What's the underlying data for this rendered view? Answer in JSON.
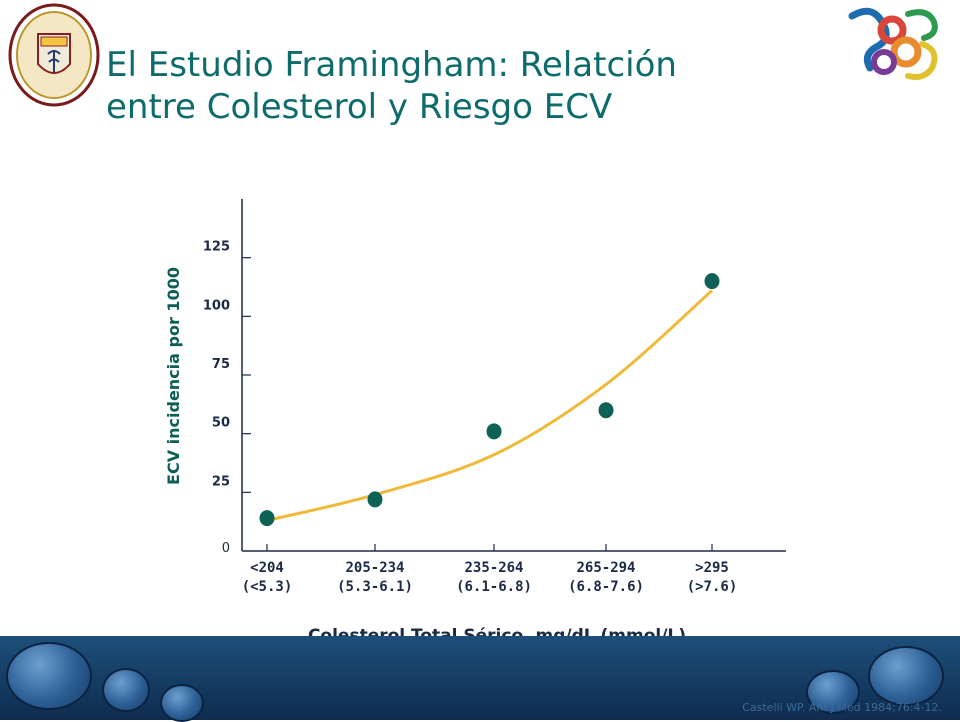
{
  "slide": {
    "title_line1": "El Estudio Framingham: Relatción",
    "title_line2": "entre Colesterol y Riesgo ECV",
    "citation": "Castelli WP. Am J Med 1984;76:4-12.",
    "title_color": "#0d6b6b"
  },
  "logos": {
    "left": "university-seal",
    "right": "abstract-colorful-logo"
  },
  "chart_data": {
    "type": "scatter",
    "xlabel": "Colesterol Total Sérico, mg/dL (mmol/L)",
    "ylabel": "ECV incidencia por 1000",
    "categories": [
      {
        "line1": "<204",
        "line2": "(<5.3)"
      },
      {
        "line1": "205-234",
        "line2": "(5.3-6.1)"
      },
      {
        "line1": "235-264",
        "line2": "(6.1-6.8)"
      },
      {
        "line1": "265-294",
        "line2": "(6.8-7.6)"
      },
      {
        "line1": ">295",
        "line2": "(>7.6)"
      }
    ],
    "values": [
      14,
      22,
      51,
      60,
      115
    ],
    "trend": [
      13,
      24,
      41,
      71,
      111
    ],
    "yticks": [
      0,
      25,
      50,
      75,
      100,
      125
    ],
    "ylim": [
      0,
      150
    ],
    "grid": false,
    "point_color": "#0e6155",
    "trend_color": "#f0b93a",
    "axis_color": "#1b2a45"
  }
}
